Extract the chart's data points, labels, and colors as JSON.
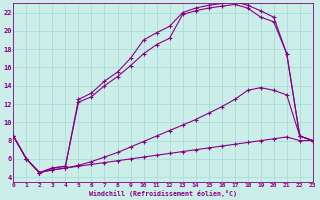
{
  "xlabel": "Windchill (Refroidissement éolien,°C)",
  "bg_color": "#cceee8",
  "grid_color": "#aaddda",
  "line_color": "#880088",
  "xlim": [
    0,
    23
  ],
  "ylim": [
    3.5,
    23
  ],
  "yticks": [
    4,
    6,
    8,
    10,
    12,
    14,
    16,
    18,
    20,
    22
  ],
  "xticks": [
    0,
    1,
    2,
    3,
    4,
    5,
    6,
    7,
    8,
    9,
    10,
    11,
    12,
    13,
    14,
    15,
    16,
    17,
    18,
    19,
    20,
    21,
    22,
    23
  ],
  "line1_x": [
    0,
    1,
    2,
    3,
    4,
    5,
    6,
    7,
    8,
    9,
    10,
    11,
    12,
    13,
    14,
    15,
    16,
    17,
    18,
    19,
    20,
    21,
    22,
    23
  ],
  "line1_y": [
    8.5,
    6.0,
    4.5,
    4.8,
    5.0,
    5.2,
    5.4,
    5.6,
    5.8,
    6.0,
    6.2,
    6.4,
    6.6,
    6.8,
    7.0,
    7.2,
    7.4,
    7.6,
    7.8,
    8.0,
    8.2,
    8.4,
    8.0,
    8.0
  ],
  "line2_x": [
    0,
    1,
    2,
    3,
    4,
    5,
    6,
    7,
    8,
    9,
    10,
    11,
    12,
    13,
    14,
    15,
    16,
    17,
    18,
    19,
    20,
    21,
    22,
    23
  ],
  "line2_y": [
    8.5,
    6.0,
    4.5,
    4.8,
    5.0,
    5.3,
    5.7,
    6.2,
    6.7,
    7.3,
    7.9,
    8.5,
    9.1,
    9.7,
    10.3,
    11.0,
    11.7,
    12.5,
    13.5,
    13.8,
    13.5,
    13.0,
    8.5,
    8.0
  ],
  "line3_x": [
    0,
    1,
    2,
    3,
    4,
    5,
    6,
    7,
    8,
    9,
    10,
    11,
    12,
    13,
    14,
    15,
    16,
    17,
    18,
    19,
    20,
    21,
    22,
    23
  ],
  "line3_y": [
    8.5,
    6.0,
    4.5,
    5.0,
    5.2,
    12.2,
    12.8,
    14.0,
    15.0,
    16.2,
    17.5,
    18.5,
    19.2,
    21.8,
    22.2,
    22.5,
    22.7,
    22.9,
    22.5,
    21.5,
    21.0,
    17.5,
    8.5,
    8.0
  ],
  "line4_x": [
    0,
    1,
    2,
    3,
    4,
    5,
    6,
    7,
    8,
    9,
    10,
    11,
    12,
    13,
    14,
    15,
    16,
    17,
    18,
    19,
    20,
    21,
    22,
    23
  ],
  "line4_y": [
    8.5,
    6.0,
    4.5,
    5.0,
    5.2,
    12.5,
    13.2,
    14.5,
    15.5,
    17.0,
    19.0,
    19.8,
    20.5,
    22.0,
    22.5,
    22.8,
    23.0,
    23.2,
    22.8,
    22.2,
    21.5,
    17.5,
    8.5,
    8.0
  ]
}
